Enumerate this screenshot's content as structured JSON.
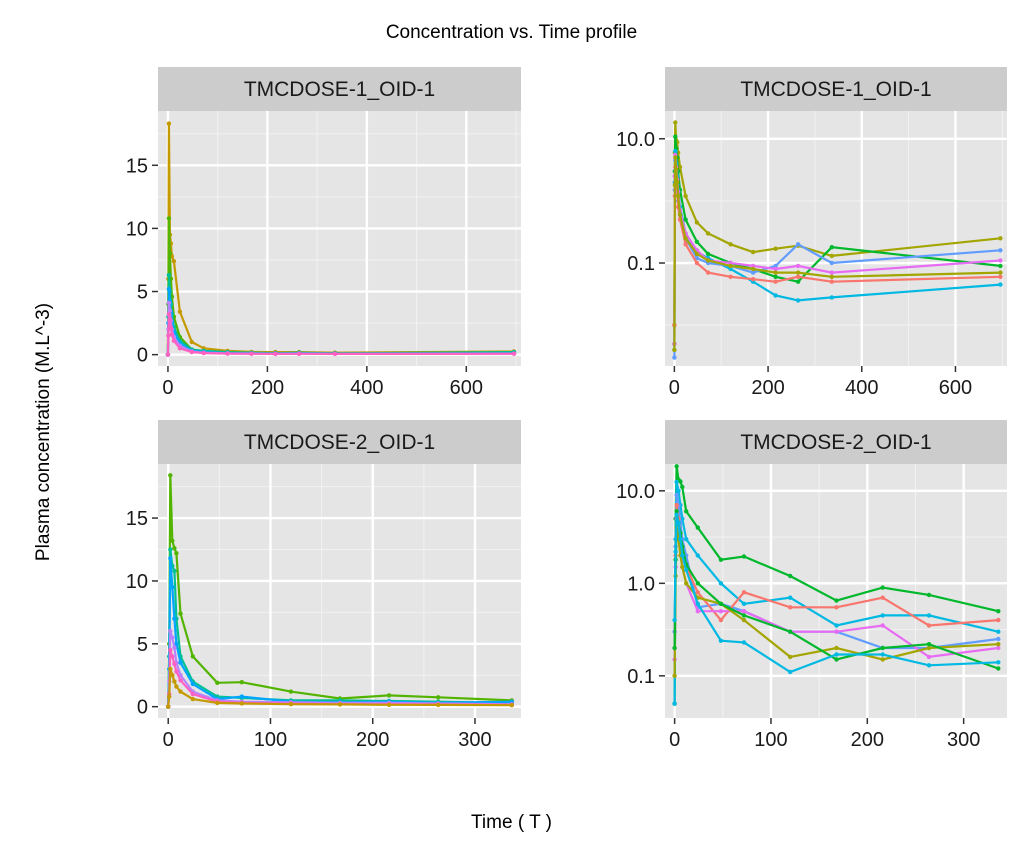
{
  "title": "Concentration vs. Time profile",
  "axis_labels": {
    "x": "Time ( T )",
    "y": "Plasma concentration (M.L^-3)"
  },
  "colors": {
    "panel_bg": "#E5E5E5",
    "strip_bg": "#CCCCCC",
    "grid_major": "#FFFFFF",
    "grid_minor": "#F2F2F2",
    "series": [
      "#C49A00",
      "#A3A500",
      "#53B400",
      "#00B82B",
      "#00C094",
      "#00B9E3",
      "#00A5FF",
      "#619CFF",
      "#B983FF",
      "#F8766D",
      "#FF61C3",
      "#E76BF3"
    ]
  },
  "chart_data": [
    {
      "type": "line",
      "strip": "TMCDOSE-1_OID-1",
      "scale": "linear",
      "xlim": [
        -20,
        710
      ],
      "ylim": [
        -0.9,
        19.3
      ],
      "x_ticks": [
        0,
        200,
        400,
        600
      ],
      "x_tick_labels": [
        "0",
        "200",
        "400",
        "600"
      ],
      "y_ticks": [
        0,
        5,
        10,
        15
      ],
      "y_tick_labels": [
        "0",
        "5",
        "10",
        "15"
      ],
      "x": [
        0,
        1,
        2,
        4,
        6,
        8,
        12,
        24,
        48,
        72,
        120,
        168,
        216,
        264,
        336,
        696
      ],
      "series": [
        {
          "values": [
            0,
            6,
            18.3,
            9.5,
            8.8,
            7.8,
            7.4,
            3.4,
            1.0,
            0.5,
            0.3,
            0.22,
            0.2,
            0.2,
            0.15,
            0.25
          ]
        },
        {
          "values": [
            0,
            4,
            10.8,
            8.0,
            6.0,
            4.6,
            3.0,
            1.4,
            0.4,
            0.25,
            0.15,
            0.12,
            0.1,
            0.1,
            0.12,
            0.15
          ]
        },
        {
          "values": [
            0,
            3,
            6.3,
            5.0,
            4.0,
            3.2,
            2.2,
            1.1,
            0.4,
            0.3,
            0.2,
            0.15,
            0.12,
            0.15,
            0.1,
            0.2
          ]
        },
        {
          "values": [
            0,
            2.5,
            5.2,
            4.2,
            3.4,
            2.6,
            1.8,
            0.9,
            0.3,
            0.2,
            0.12,
            0.1,
            0.08,
            0.1,
            0.08,
            0.1
          ]
        },
        {
          "values": [
            0,
            2,
            4.1,
            3.5,
            2.7,
            2.0,
            1.4,
            0.7,
            0.25,
            0.15,
            0.1,
            0.08,
            0.07,
            0.08,
            0.07,
            0.08
          ]
        },
        {
          "values": [
            0,
            1.5,
            3.2,
            2.8,
            2.1,
            1.6,
            1.1,
            0.5,
            0.2,
            0.12,
            0.08,
            0.07,
            0.06,
            0.07,
            0.06,
            0.07
          ]
        }
      ]
    },
    {
      "type": "line",
      "strip": "TMCDOSE-1_OID-1",
      "scale": "log10",
      "xlim": [
        -20,
        710
      ],
      "ylim": [
        0.0022,
        28
      ],
      "x_ticks": [
        0,
        200,
        400,
        600
      ],
      "x_tick_labels": [
        "0",
        "200",
        "400",
        "600"
      ],
      "y_ticks": [
        0.1,
        10
      ],
      "y_tick_labels": [
        "0.1",
        "10.0"
      ],
      "x": [
        0,
        1,
        2,
        4,
        6,
        8,
        12,
        24,
        48,
        72,
        120,
        168,
        216,
        264,
        336,
        696
      ],
      "series": [
        {
          "values": [
            0.01,
            6,
            18.3,
            9.5,
            8.8,
            6.0,
            3.5,
            1.2,
            0.45,
            0.3,
            0.2,
            0.15,
            0.17,
            0.19,
            0.13,
            0.25
          ]
        },
        {
          "values": [
            0.005,
            3,
            10.8,
            7.0,
            5.0,
            3.0,
            1.5,
            0.5,
            0.22,
            0.14,
            0.1,
            0.08,
            0.06,
            0.05,
            0.18,
            0.09
          ]
        },
        {
          "values": [
            0.004,
            2,
            6.3,
            4.0,
            2.5,
            1.5,
            0.8,
            0.3,
            0.15,
            0.12,
            0.08,
            0.05,
            0.03,
            0.025,
            0.028,
            0.045
          ]
        },
        {
          "values": [
            0.003,
            1.5,
            4.5,
            3.0,
            1.8,
            1.0,
            0.6,
            0.25,
            0.12,
            0.1,
            0.09,
            0.07,
            0.09,
            0.2,
            0.1,
            0.16
          ]
        },
        {
          "values": [
            0.01,
            1.2,
            3.5,
            2.4,
            1.4,
            0.8,
            0.5,
            0.2,
            0.1,
            0.07,
            0.06,
            0.055,
            0.05,
            0.06,
            0.05,
            0.06
          ]
        },
        {
          "values": [
            0.005,
            2.5,
            5.5,
            3.5,
            2.2,
            1.4,
            0.7,
            0.3,
            0.16,
            0.11,
            0.1,
            0.09,
            0.08,
            0.09,
            0.07,
            0.11
          ]
        },
        {
          "values": [
            0.004,
            1.8,
            5.0,
            3.2,
            2.0,
            1.2,
            0.6,
            0.25,
            0.14,
            0.11,
            0.09,
            0.08,
            0.07,
            0.07,
            0.06,
            0.07
          ]
        }
      ]
    },
    {
      "type": "line",
      "strip": "TMCDOSE-2_OID-1",
      "scale": "linear",
      "xlim": [
        -10,
        345
      ],
      "ylim": [
        -0.9,
        19.3
      ],
      "x_ticks": [
        0,
        100,
        200,
        300
      ],
      "x_tick_labels": [
        "0",
        "100",
        "200",
        "300"
      ],
      "y_ticks": [
        0,
        5,
        10,
        15
      ],
      "y_tick_labels": [
        "0",
        "5",
        "10",
        "15"
      ],
      "x": [
        0,
        1,
        2,
        4,
        6,
        8,
        12,
        24,
        48,
        72,
        120,
        168,
        216,
        264,
        336
      ],
      "series": [
        {
          "values": [
            0,
            5,
            18.4,
            13.2,
            12.6,
            12.2,
            7.4,
            4.0,
            1.9,
            1.95,
            1.2,
            0.65,
            0.9,
            0.75,
            0.5
          ]
        },
        {
          "values": [
            0,
            4,
            12.5,
            11.2,
            10.8,
            7.0,
            4.0,
            2.0,
            0.8,
            0.7,
            0.5,
            0.5,
            0.45,
            0.4,
            0.3
          ]
        },
        {
          "values": [
            0,
            3,
            11.8,
            9.5,
            7.0,
            5.0,
            3.5,
            1.8,
            0.6,
            0.8,
            0.4,
            0.35,
            0.4,
            0.3,
            0.4
          ]
        },
        {
          "values": [
            0,
            2,
            6.0,
            5.5,
            4.7,
            3.5,
            2.5,
            1.2,
            0.5,
            0.4,
            0.35,
            0.3,
            0.3,
            0.25,
            0.2
          ]
        },
        {
          "values": [
            0,
            1,
            4.5,
            4.0,
            3.4,
            2.8,
            2.1,
            1.0,
            0.4,
            0.3,
            0.25,
            0.2,
            0.2,
            0.18,
            0.15
          ]
        },
        {
          "values": [
            0,
            0.8,
            3.0,
            2.5,
            2.0,
            1.6,
            1.2,
            0.6,
            0.3,
            0.25,
            0.2,
            0.18,
            0.15,
            0.14,
            0.12
          ]
        }
      ]
    },
    {
      "type": "line",
      "strip": "TMCDOSE-2_OID-1",
      "scale": "log10",
      "xlim": [
        -10,
        345
      ],
      "ylim": [
        0.035,
        19.5
      ],
      "x_ticks": [
        0,
        100,
        200,
        300
      ],
      "x_tick_labels": [
        "0",
        "100",
        "200",
        "300"
      ],
      "y_ticks": [
        0.1,
        1,
        10
      ],
      "y_tick_labels": [
        "0.1",
        "1.0",
        "10.0"
      ],
      "x": [
        0,
        1,
        2,
        4,
        6,
        8,
        12,
        24,
        48,
        72,
        120,
        168,
        216,
        264,
        336
      ],
      "series": [
        {
          "values": [
            0.05,
            5,
            18.4,
            13.2,
            12.6,
            11.0,
            6.0,
            4.0,
            1.8,
            1.95,
            1.2,
            0.65,
            0.9,
            0.75,
            0.5
          ]
        },
        {
          "values": [
            0.05,
            3,
            12.5,
            10.0,
            7.0,
            5.0,
            3.0,
            2.0,
            1.0,
            0.6,
            0.7,
            0.35,
            0.45,
            0.45,
            0.3
          ]
        },
        {
          "values": [
            0.3,
            2.5,
            9.0,
            7.0,
            4.5,
            3.0,
            2.0,
            0.55,
            0.6,
            0.5,
            0.3,
            0.3,
            0.2,
            0.2,
            0.25
          ]
        },
        {
          "values": [
            0.2,
            2.0,
            7.0,
            5.0,
            3.0,
            2.0,
            1.5,
            0.8,
            0.4,
            0.8,
            0.55,
            0.55,
            0.7,
            0.35,
            0.4
          ]
        },
        {
          "values": [
            0.15,
            1.5,
            5.0,
            4.0,
            2.5,
            1.5,
            1.0,
            0.5,
            0.5,
            0.5,
            0.3,
            0.3,
            0.35,
            0.16,
            0.2
          ]
        },
        {
          "values": [
            0.1,
            1.2,
            4.0,
            3.0,
            2.0,
            1.5,
            1.0,
            0.7,
            0.6,
            0.4,
            0.16,
            0.2,
            0.15,
            0.2,
            0.22
          ]
        },
        {
          "values": [
            0.2,
            1.8,
            6.0,
            4.5,
            3.5,
            2.5,
            1.6,
            1.0,
            0.6,
            0.45,
            0.3,
            0.15,
            0.2,
            0.22,
            0.12
          ]
        },
        {
          "values": [
            0.4,
            2.2,
            5.5,
            4.5,
            3.0,
            2.0,
            1.4,
            0.6,
            0.24,
            0.23,
            0.11,
            0.17,
            0.17,
            0.13,
            0.14
          ]
        }
      ]
    }
  ]
}
